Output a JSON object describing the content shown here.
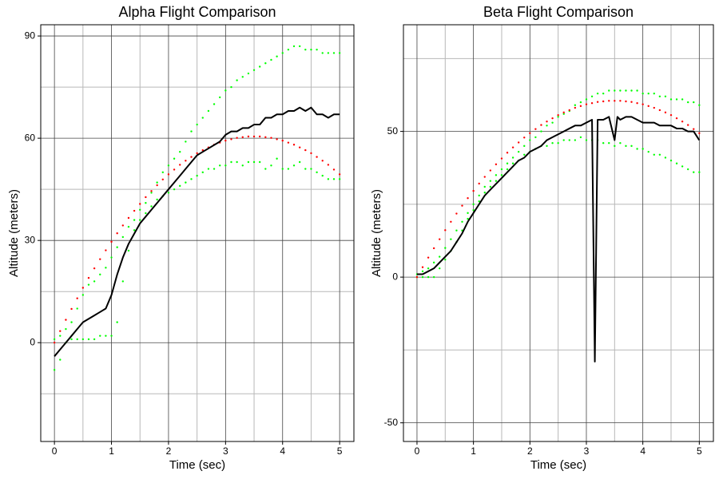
{
  "chart_data": [
    {
      "type": "line",
      "title": "Alpha Flight Comparison",
      "x_label": "Time (sec)",
      "y_label": "Altitude (meters)",
      "x": [
        0,
        0.1,
        0.2,
        0.3,
        0.4,
        0.5,
        0.6,
        0.7,
        0.8,
        0.9,
        1,
        1.1,
        1.2,
        1.3,
        1.4,
        1.5,
        1.6,
        1.7,
        1.8,
        1.9,
        2,
        2.1,
        2.2,
        2.3,
        2.4,
        2.5,
        2.6,
        2.7,
        2.8,
        2.9,
        3,
        3.1,
        3.2,
        3.3,
        3.4,
        3.5,
        3.6,
        3.7,
        3.8,
        3.9,
        4,
        4.1,
        4.2,
        4.3,
        4.4,
        4.5,
        4.6,
        4.7,
        4.8,
        4.9,
        5
      ],
      "xlim": [
        -0.24,
        5.25
      ],
      "ylim": [
        -29,
        93.3
      ],
      "xticks": [
        0,
        1,
        2,
        3,
        4,
        5
      ],
      "yticks": [
        0,
        30,
        60,
        90
      ],
      "xminor": [
        0.5,
        1.5,
        2.5,
        3.5,
        4.5
      ],
      "yminor": [
        -15,
        15,
        45,
        75
      ],
      "grid": true,
      "series": [
        {
          "color": "#00ff00",
          "style": "dots",
          "values": [
            1,
            2,
            4,
            6,
            10,
            14,
            17,
            18,
            20,
            22,
            25,
            28,
            31,
            34,
            36,
            39,
            41,
            44,
            47,
            50,
            52,
            54,
            56,
            59,
            62,
            64,
            66,
            68,
            70,
            72,
            74,
            75,
            77,
            78,
            79,
            80,
            81,
            82,
            83,
            84,
            85,
            86,
            87,
            87,
            86,
            86,
            86,
            85,
            85,
            85,
            85
          ]
        },
        {
          "color": "#00ff00",
          "style": "dots",
          "values": [
            -8,
            -5,
            0,
            1,
            1,
            1,
            1,
            1,
            2,
            2,
            2,
            6,
            18,
            27,
            33,
            36,
            38,
            40,
            42,
            43,
            44,
            45,
            46,
            47,
            48,
            49,
            50,
            51,
            51,
            52,
            52,
            53,
            53,
            52,
            53,
            53,
            53,
            51,
            52,
            54,
            51,
            51,
            52,
            53,
            51,
            51,
            50,
            49,
            48,
            48,
            48
          ]
        },
        {
          "color": "#ff0000",
          "style": "dots",
          "values": [
            0,
            3.4,
            6.7,
            9.9,
            13,
            16.1,
            19,
            21.8,
            24.5,
            27.1,
            29.6,
            32.1,
            34.4,
            36.6,
            38.7,
            40.7,
            42.7,
            44.5,
            46.2,
            47.9,
            49.4,
            50.8,
            52.2,
            53.4,
            54.5,
            55.6,
            56.5,
            57.3,
            58.1,
            58.7,
            59.3,
            59.7,
            60.1,
            60.3,
            60.5,
            60.5,
            60.5,
            60.3,
            60.1,
            59.7,
            59.3,
            58.7,
            58.1,
            57.3,
            56.5,
            55.6,
            54.5,
            53.4,
            52.2,
            50.8,
            49.4
          ]
        },
        {
          "color": "#000000",
          "style": "line",
          "values": [
            -4,
            -2,
            0,
            2,
            4,
            6,
            7,
            8,
            9,
            10,
            14,
            20,
            25,
            29,
            32,
            35,
            37,
            39,
            41,
            43,
            45,
            47,
            49,
            51,
            53,
            55,
            56,
            57,
            58,
            59,
            61,
            62,
            62,
            63,
            63,
            64,
            64,
            66,
            66,
            67,
            67,
            68,
            68,
            69,
            68,
            69,
            67,
            67,
            66,
            67,
            67
          ]
        }
      ]
    },
    {
      "type": "line",
      "title": "Beta Flight Comparison",
      "x_label": "Time (sec)",
      "y_label": "Altitude (meters)",
      "x": [
        0,
        0.1,
        0.2,
        0.3,
        0.4,
        0.5,
        0.6,
        0.7,
        0.8,
        0.9,
        1,
        1.1,
        1.2,
        1.3,
        1.4,
        1.5,
        1.6,
        1.7,
        1.8,
        1.9,
        2,
        2.1,
        2.2,
        2.3,
        2.4,
        2.5,
        2.6,
        2.7,
        2.8,
        2.9,
        3,
        3.1,
        3.2,
        3.3,
        3.4,
        3.5,
        3.6,
        3.7,
        3.8,
        3.9,
        4,
        4.1,
        4.2,
        4.3,
        4.4,
        4.5,
        4.6,
        4.7,
        4.8,
        4.9,
        5
      ],
      "xlim": [
        -0.24,
        5.25
      ],
      "ylim": [
        -56.4,
        86.6
      ],
      "xticks": [
        0,
        1,
        2,
        3,
        4,
        5
      ],
      "yticks": [
        -50,
        0,
        50
      ],
      "xminor": [
        0.5,
        1.5,
        2.5,
        3.5,
        4.5
      ],
      "yminor": [
        -25,
        25,
        75
      ],
      "grid": true,
      "series": [
        {
          "color": "#00ff00",
          "style": "dots",
          "values": [
            1,
            2,
            3,
            5,
            7,
            10,
            13,
            16,
            19,
            22,
            25,
            28,
            31,
            33,
            35,
            37,
            39,
            41,
            43,
            45,
            47,
            48,
            50,
            52,
            53,
            55,
            56,
            57,
            59,
            60,
            61,
            62,
            63,
            63,
            64,
            64,
            64,
            64,
            64,
            64,
            63,
            63,
            63,
            62,
            62,
            61,
            61,
            61,
            60,
            60,
            59
          ]
        },
        {
          "color": "#00ff00",
          "style": "dots",
          "values": [
            0,
            0,
            0,
            0,
            3,
            6,
            9,
            12,
            16,
            20,
            23,
            26,
            29,
            31,
            33,
            35,
            37,
            39,
            40,
            42,
            43,
            44,
            45,
            45,
            46,
            46,
            47,
            47,
            47,
            48,
            47,
            47,
            47,
            46,
            46,
            45,
            46,
            45,
            45,
            44,
            44,
            43,
            42,
            42,
            41,
            40,
            39,
            38,
            37,
            36,
            36
          ]
        },
        {
          "color": "#ff0000",
          "style": "dots",
          "values": [
            0,
            3.4,
            6.7,
            9.9,
            13,
            16.1,
            19,
            21.8,
            24.5,
            27.1,
            29.6,
            32.1,
            34.4,
            36.6,
            38.7,
            40.7,
            42.7,
            44.5,
            46.2,
            47.9,
            49.4,
            50.8,
            52.2,
            53.4,
            54.5,
            55.6,
            56.5,
            57.3,
            58.1,
            58.7,
            59.3,
            59.7,
            60.1,
            60.3,
            60.5,
            60.5,
            60.5,
            60.3,
            60.1,
            59.7,
            59.3,
            58.7,
            58.1,
            57.3,
            56.5,
            55.6,
            54.5,
            53.4,
            52.2,
            50.8,
            49.4
          ]
        },
        {
          "color": "#000000",
          "style": "line",
          "x": [
            0,
            0.1,
            0.2,
            0.3,
            0.4,
            0.5,
            0.6,
            0.7,
            0.8,
            0.9,
            1,
            1.1,
            1.2,
            1.3,
            1.4,
            1.5,
            1.6,
            1.7,
            1.8,
            1.9,
            2,
            2.1,
            2.2,
            2.3,
            2.4,
            2.5,
            2.6,
            2.7,
            2.8,
            2.9,
            3,
            3.1,
            3.15,
            3.2,
            3.3,
            3.4,
            3.5,
            3.55,
            3.6,
            3.7,
            3.8,
            3.9,
            4,
            4.1,
            4.2,
            4.3,
            4.4,
            4.5,
            4.6,
            4.7,
            4.8,
            4.9,
            5
          ],
          "values": [
            1,
            1,
            2,
            3,
            5,
            7,
            9,
            12,
            15,
            19,
            22,
            25,
            28,
            30,
            32,
            34,
            36,
            38,
            40,
            41,
            43,
            44,
            45,
            47,
            48,
            49,
            50,
            51,
            52,
            52,
            53,
            54,
            -29,
            54,
            54,
            55,
            47,
            55,
            54,
            55,
            55,
            54,
            53,
            53,
            53,
            52,
            52,
            52,
            51,
            51,
            50,
            50,
            47
          ]
        }
      ]
    }
  ]
}
